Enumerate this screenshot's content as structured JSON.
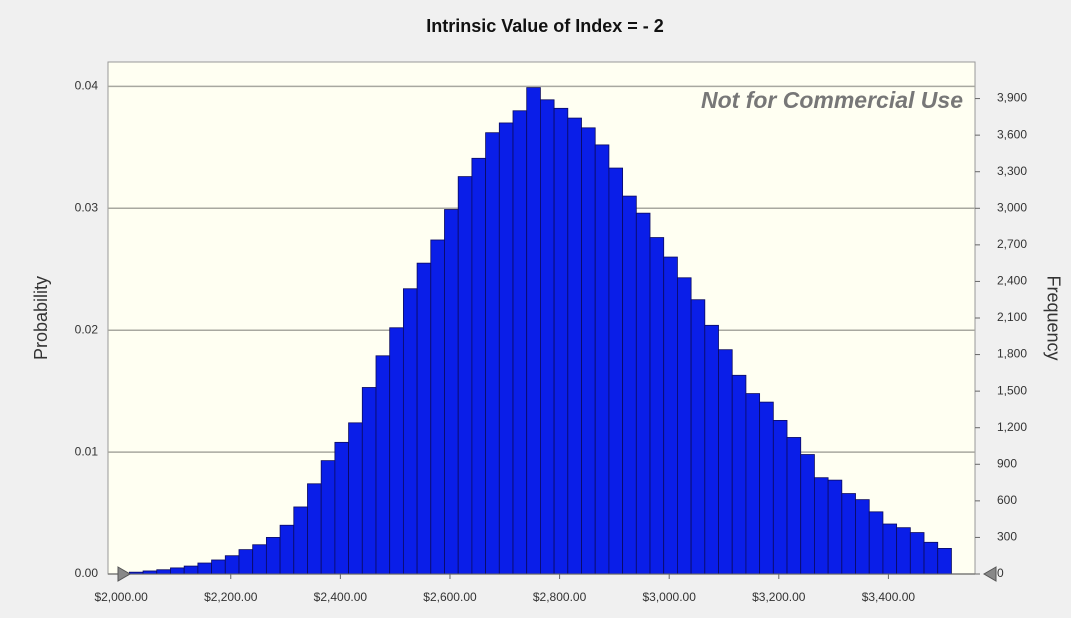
{
  "chart_data": {
    "type": "histogram",
    "title": "Intrinsic Value of Index = - 2",
    "watermark": "Not for Commercial Use",
    "y_label": "Probability",
    "y2_label": "Frequency",
    "color": "#0a1ee8",
    "grid": true,
    "bins": [
      2015,
      2040,
      2065,
      2090,
      2115,
      2140,
      2165,
      2190,
      2215,
      2240,
      2265,
      2290,
      2315,
      2340,
      2365,
      2390,
      2415,
      2440,
      2465,
      2490,
      2515,
      2540,
      2565,
      2590,
      2615,
      2640,
      2665,
      2690,
      2715,
      2740,
      2765,
      2790,
      2815,
      2840,
      2865,
      2890,
      2915,
      2940,
      2965,
      2990,
      3015,
      3040,
      3065,
      3090,
      3115,
      3140,
      3165,
      3190,
      3215,
      3240,
      3265,
      3290,
      3315,
      3340,
      3365,
      3390,
      3415,
      3440,
      3465,
      3490,
      3515
    ],
    "values": [
      0.00015,
      0.00025,
      0.00035,
      0.0005,
      0.00065,
      0.0009,
      0.00115,
      0.0015,
      0.002,
      0.0024,
      0.003,
      0.004,
      0.0055,
      0.0074,
      0.0093,
      0.0108,
      0.0124,
      0.0153,
      0.0179,
      0.0202,
      0.0234,
      0.0255,
      0.0274,
      0.0299,
      0.0326,
      0.0341,
      0.0362,
      0.037,
      0.038,
      0.0399,
      0.0389,
      0.0382,
      0.0374,
      0.0366,
      0.0352,
      0.0333,
      0.031,
      0.0296,
      0.0276,
      0.026,
      0.0243,
      0.0225,
      0.0204,
      0.0184,
      0.0163,
      0.0148,
      0.0141,
      0.0126,
      0.0112,
      0.0098,
      0.0079,
      0.0077,
      0.0066,
      0.0061,
      0.0051,
      0.0041,
      0.0038,
      0.0034,
      0.0026,
      0.0021
    ],
    "xlim": [
      1976,
      3558
    ],
    "xticks": [
      {
        "value": 2000,
        "label": "$2,000.00"
      },
      {
        "value": 2200,
        "label": "$2,200.00"
      },
      {
        "value": 2400,
        "label": "$2,400.00"
      },
      {
        "value": 2600,
        "label": "$2,600.00"
      },
      {
        "value": 2800,
        "label": "$2,800.00"
      },
      {
        "value": 3000,
        "label": "$3,000.00"
      },
      {
        "value": 3200,
        "label": "$3,200.00"
      },
      {
        "value": 3400,
        "label": "$3,400.00"
      }
    ],
    "ylim": [
      0,
      0.042
    ],
    "yticks": [
      {
        "value": 0,
        "label": "0.00"
      },
      0.01,
      0.02,
      0.03,
      0.04
    ],
    "y2lim": [
      0,
      4200
    ],
    "y2ticks": [
      0,
      300,
      600,
      900,
      {
        "value": 1200,
        "label": "1,200"
      },
      {
        "value": 1500,
        "label": "1,500"
      },
      {
        "value": 1800,
        "label": "1,800"
      },
      {
        "value": 2100,
        "label": "2,100"
      },
      {
        "value": 2400,
        "label": "2,400"
      },
      {
        "value": 2700,
        "label": "2,700"
      },
      {
        "value": 3000,
        "label": "3,000"
      },
      {
        "value": 3300,
        "label": "3,300"
      },
      {
        "value": 3600,
        "label": "3,600"
      },
      {
        "value": 3900,
        "label": "3,900"
      }
    ]
  }
}
